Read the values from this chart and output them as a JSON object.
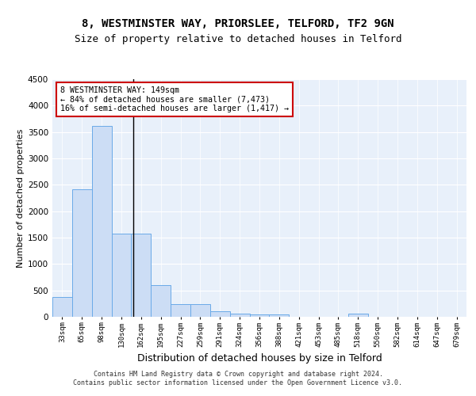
{
  "title1": "8, WESTMINSTER WAY, PRIORSLEE, TELFORD, TF2 9GN",
  "title2": "Size of property relative to detached houses in Telford",
  "xlabel": "Distribution of detached houses by size in Telford",
  "ylabel": "Number of detached properties",
  "categories": [
    "33sqm",
    "65sqm",
    "98sqm",
    "130sqm",
    "162sqm",
    "195sqm",
    "227sqm",
    "259sqm",
    "291sqm",
    "324sqm",
    "356sqm",
    "388sqm",
    "421sqm",
    "453sqm",
    "485sqm",
    "518sqm",
    "550sqm",
    "582sqm",
    "614sqm",
    "647sqm",
    "679sqm"
  ],
  "values": [
    370,
    2420,
    3620,
    1580,
    1580,
    600,
    240,
    240,
    105,
    60,
    50,
    50,
    0,
    0,
    0,
    60,
    0,
    0,
    0,
    0,
    0
  ],
  "bar_color": "#ccddf5",
  "bar_edge_color": "#6aaae8",
  "bg_color": "#e8f0fa",
  "annotation_text": "8 WESTMINSTER WAY: 149sqm\n← 84% of detached houses are smaller (7,473)\n16% of semi-detached houses are larger (1,417) →",
  "vline_color": "#000000",
  "annotation_box_color": "#ffffff",
  "annotation_box_edge_color": "#cc0000",
  "footer": "Contains HM Land Registry data © Crown copyright and database right 2024.\nContains public sector information licensed under the Open Government Licence v3.0.",
  "ylim": [
    0,
    4500
  ],
  "title1_fontsize": 10,
  "title2_fontsize": 9,
  "xlabel_fontsize": 9,
  "ylabel_fontsize": 8
}
